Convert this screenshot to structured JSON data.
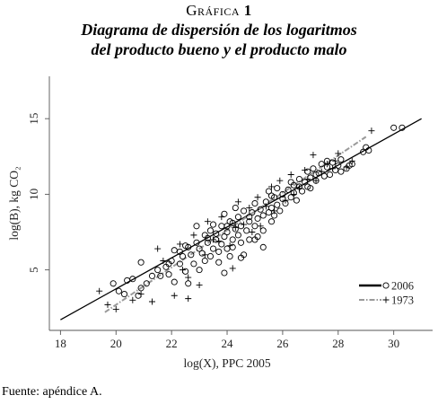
{
  "header": {
    "label_prefix": "Gráfica",
    "label_number": "1",
    "title_line1": "Diagrama de dispersión de los logaritmos",
    "title_line2": "del producto bueno y el producto malo"
  },
  "source_note": "Fuente: apéndice A.",
  "chart_data": {
    "type": "scatter",
    "title": "Diagrama de dispersión de los logaritmos del producto bueno y el producto malo",
    "xlabel": "log(X), PPC 2005",
    "ylabel": "log(B), kg CO₂",
    "x_ticks": [
      18,
      20,
      22,
      24,
      26,
      28,
      30
    ],
    "y_ticks": [
      5,
      10,
      15
    ],
    "xlim": [
      17.6,
      31.4
    ],
    "ylim": [
      1.0,
      17.8
    ],
    "grid": false,
    "legend_position": "bottom-right",
    "series": [
      {
        "name": "2006",
        "marker": "circle",
        "color": "#000000",
        "points": [
          [
            19.9,
            4.1
          ],
          [
            20.1,
            3.6
          ],
          [
            20.3,
            3.4
          ],
          [
            20.4,
            4.3
          ],
          [
            20.6,
            4.4
          ],
          [
            20.8,
            3.3
          ],
          [
            20.9,
            3.8
          ],
          [
            20.9,
            5.5
          ],
          [
            21.1,
            4.1
          ],
          [
            21.3,
            4.6
          ],
          [
            21.5,
            5.0
          ],
          [
            21.6,
            4.6
          ],
          [
            21.8,
            5.2
          ],
          [
            21.9,
            4.7
          ],
          [
            22.0,
            5.6
          ],
          [
            22.1,
            4.2
          ],
          [
            22.1,
            6.3
          ],
          [
            22.3,
            5.4
          ],
          [
            22.4,
            5.9
          ],
          [
            22.5,
            4.9
          ],
          [
            22.5,
            6.6
          ],
          [
            22.6,
            4.1
          ],
          [
            22.7,
            6.0
          ],
          [
            22.8,
            5.4
          ],
          [
            22.9,
            6.8
          ],
          [
            22.9,
            7.9
          ],
          [
            23.0,
            5.0
          ],
          [
            23.0,
            6.4
          ],
          [
            23.1,
            6.1
          ],
          [
            23.2,
            7.3
          ],
          [
            23.2,
            5.6
          ],
          [
            23.3,
            6.8
          ],
          [
            23.4,
            5.9
          ],
          [
            23.4,
            7.6
          ],
          [
            23.5,
            6.4
          ],
          [
            23.5,
            8.0
          ],
          [
            23.6,
            7.0
          ],
          [
            23.7,
            6.2
          ],
          [
            23.7,
            5.5
          ],
          [
            23.8,
            7.9
          ],
          [
            23.8,
            6.7
          ],
          [
            23.9,
            7.2
          ],
          [
            23.9,
            8.7
          ],
          [
            24.0,
            6.4
          ],
          [
            24.0,
            7.5
          ],
          [
            24.1,
            5.9
          ],
          [
            24.1,
            8.2
          ],
          [
            24.2,
            7.0
          ],
          [
            24.2,
            6.5
          ],
          [
            24.3,
            7.7
          ],
          [
            24.3,
            9.1
          ],
          [
            24.4,
            7.3
          ],
          [
            24.4,
            8.5
          ],
          [
            24.5,
            6.8
          ],
          [
            24.5,
            7.9
          ],
          [
            24.6,
            8.9
          ],
          [
            24.6,
            6.0
          ],
          [
            24.7,
            7.6
          ],
          [
            24.8,
            8.2
          ],
          [
            24.8,
            7.0
          ],
          [
            24.9,
            8.8
          ],
          [
            25.0,
            7.9
          ],
          [
            25.0,
            9.4
          ],
          [
            25.1,
            8.4
          ],
          [
            25.1,
            7.2
          ],
          [
            25.2,
            9.0
          ],
          [
            25.3,
            8.6
          ],
          [
            25.3,
            7.6
          ],
          [
            25.4,
            9.5
          ],
          [
            25.5,
            8.8
          ],
          [
            25.5,
            10.2
          ],
          [
            25.6,
            9.1
          ],
          [
            25.6,
            8.2
          ],
          [
            25.7,
            9.8
          ],
          [
            25.8,
            9.3
          ],
          [
            25.8,
            10.4
          ],
          [
            25.9,
            8.9
          ],
          [
            26.0,
            9.7
          ],
          [
            26.0,
            10.0
          ],
          [
            26.1,
            9.4
          ],
          [
            26.2,
            10.3
          ],
          [
            26.3,
            9.8
          ],
          [
            26.3,
            10.8
          ],
          [
            26.4,
            10.1
          ],
          [
            26.5,
            9.6
          ],
          [
            26.6,
            10.5
          ],
          [
            26.6,
            11.0
          ],
          [
            26.7,
            10.2
          ],
          [
            26.8,
            10.8
          ],
          [
            26.9,
            11.5
          ],
          [
            27.0,
            10.4
          ],
          [
            27.0,
            11.1
          ],
          [
            27.1,
            11.7
          ],
          [
            27.2,
            10.9
          ],
          [
            27.3,
            11.4
          ],
          [
            27.4,
            12.0
          ],
          [
            27.5,
            11.2
          ],
          [
            27.6,
            11.8
          ],
          [
            27.7,
            11.3
          ],
          [
            27.8,
            12.1
          ],
          [
            27.9,
            11.6
          ],
          [
            28.0,
            11.9
          ],
          [
            28.1,
            12.3
          ],
          [
            28.3,
            11.7
          ],
          [
            28.4,
            11.9
          ],
          [
            28.5,
            12.0
          ],
          [
            28.9,
            12.8
          ],
          [
            29.0,
            13.1
          ],
          [
            29.1,
            12.9
          ],
          [
            30.0,
            14.4
          ],
          [
            30.3,
            14.4
          ],
          [
            23.9,
            4.8
          ],
          [
            24.5,
            5.8
          ],
          [
            25.0,
            7.0
          ],
          [
            25.3,
            6.5
          ],
          [
            22.6,
            6.5
          ],
          [
            23.3,
            7.1
          ],
          [
            24.0,
            7.9
          ],
          [
            24.8,
            8.5
          ],
          [
            25.6,
            9.9
          ],
          [
            26.4,
            10.6
          ],
          [
            27.2,
            11.3
          ],
          [
            21.9,
            5.4
          ],
          [
            22.3,
            6.2
          ],
          [
            23.6,
            7.4
          ],
          [
            24.2,
            8.1
          ],
          [
            25.7,
            8.6
          ],
          [
            26.9,
            10.5
          ],
          [
            27.6,
            12.2
          ],
          [
            28.1,
            11.5
          ]
        ]
      },
      {
        "name": "1973",
        "marker": "plus",
        "color": "#000000",
        "points": [
          [
            19.4,
            3.6
          ],
          [
            19.7,
            2.7
          ],
          [
            20.0,
            2.4
          ],
          [
            20.6,
            3.0
          ],
          [
            20.9,
            3.4
          ],
          [
            21.3,
            2.9
          ],
          [
            21.5,
            6.4
          ],
          [
            21.7,
            5.6
          ],
          [
            22.1,
            3.3
          ],
          [
            22.3,
            6.7
          ],
          [
            22.4,
            5.0
          ],
          [
            22.6,
            4.5
          ],
          [
            22.6,
            3.1
          ],
          [
            22.8,
            7.3
          ],
          [
            23.0,
            4.0
          ],
          [
            23.2,
            6.0
          ],
          [
            23.3,
            8.2
          ],
          [
            23.5,
            7.0
          ],
          [
            23.7,
            6.9
          ],
          [
            23.8,
            8.5
          ],
          [
            24.1,
            6.6
          ],
          [
            24.2,
            5.1
          ],
          [
            24.3,
            7.8
          ],
          [
            24.4,
            9.5
          ],
          [
            24.6,
            8.0
          ],
          [
            24.8,
            9.1
          ],
          [
            24.9,
            7.5
          ],
          [
            25.1,
            9.8
          ],
          [
            25.2,
            7.9
          ],
          [
            25.4,
            9.2
          ],
          [
            25.6,
            10.5
          ],
          [
            25.7,
            8.9
          ],
          [
            25.9,
            10.9
          ],
          [
            26.1,
            9.6
          ],
          [
            26.3,
            11.3
          ],
          [
            26.4,
            10.0
          ],
          [
            26.6,
            10.4
          ],
          [
            26.8,
            11.6
          ],
          [
            26.9,
            11.0
          ],
          [
            27.1,
            12.6
          ],
          [
            27.2,
            10.9
          ],
          [
            27.4,
            11.5
          ],
          [
            27.6,
            12.0
          ],
          [
            27.8,
            11.7
          ],
          [
            27.9,
            12.2
          ],
          [
            28.0,
            12.7
          ],
          [
            28.3,
            11.8
          ],
          [
            28.5,
            12.2
          ],
          [
            29.2,
            14.2
          ]
        ]
      }
    ],
    "fit_lines": [
      {
        "series": "2006",
        "style": "solid",
        "color": "#000000",
        "x": [
          18.0,
          31.0
        ],
        "y": [
          1.7,
          15.0
        ]
      },
      {
        "series": "1973",
        "style": "dashdot",
        "color": "#9a9a9a",
        "x": [
          19.6,
          29.0
        ],
        "y": [
          2.2,
          13.8
        ]
      }
    ]
  }
}
